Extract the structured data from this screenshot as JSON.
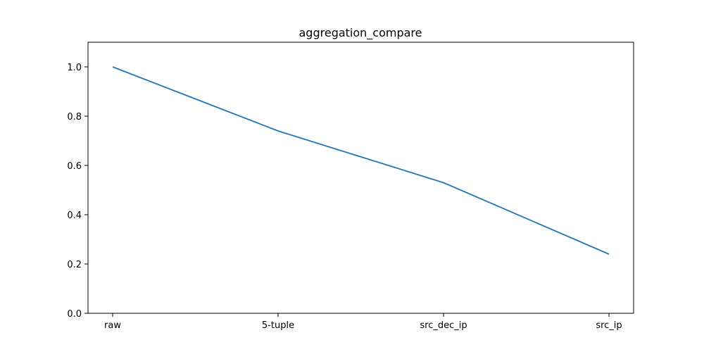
{
  "chart_data": {
    "type": "line",
    "title": "aggregation_compare",
    "xlabel": "",
    "ylabel": "",
    "categories": [
      "raw",
      "5-tuple",
      "src_dec_ip",
      "src_ip"
    ],
    "series": [
      {
        "values": [
          1.0,
          0.74,
          0.53,
          0.24
        ]
      }
    ],
    "ylim": [
      0,
      1.1
    ],
    "yticks": [
      "0.0",
      "0.2",
      "0.4",
      "0.6",
      "0.8",
      "1.0"
    ],
    "grid": false,
    "legend": "none",
    "colors": {
      "line": "#1f77b4",
      "axes": "#000000"
    }
  }
}
